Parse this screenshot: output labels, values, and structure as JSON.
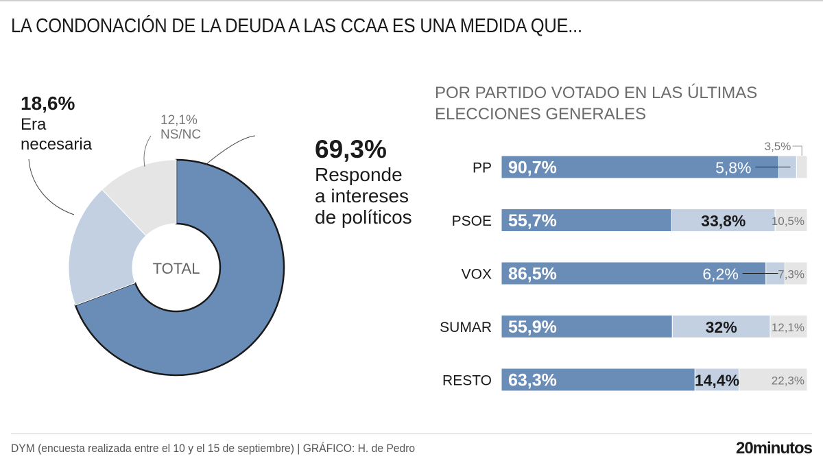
{
  "title": "LA CONDONACIÓN DE LA DEUDA A LAS CCAA ES UNA MEDIDA QUE...",
  "footer": {
    "source": "DYM (encuesta realizada entre el 10 y el 15 de septiembre)  |  GRÁFICO: H. de Pedro",
    "brand": "20minutos"
  },
  "colors": {
    "dark_blue": "#6a8db8",
    "light_blue": "#c2d0e2",
    "grey": "#e5e5e5",
    "outline": "#1a1a1a"
  },
  "chart_data": [
    {
      "type": "pie",
      "title": "TOTAL",
      "center_label": "TOTAL",
      "slices": [
        {
          "label": "Responde a intereses de políticos",
          "value": 69.3,
          "value_label": "69,3%",
          "label_lines": [
            "Responde",
            "a intereses",
            "de políticos"
          ]
        },
        {
          "label": "Era necesaria",
          "value": 18.6,
          "value_label": "18,6%",
          "label_lines": [
            "Era",
            "necesaria"
          ]
        },
        {
          "label": "NS/NC",
          "value": 12.1,
          "value_label": "12,1%",
          "label_lines": [
            "NS/NC"
          ]
        }
      ]
    },
    {
      "type": "bar",
      "orientation": "horizontal",
      "stacked": true,
      "title": "POR PARTIDO VOTADO EN LAS ÚLTIMAS ELECCIONES GENERALES",
      "categories": [
        "PP",
        "PSOE",
        "VOX",
        "SUMAR",
        "RESTO"
      ],
      "series": [
        {
          "name": "Responde a intereses de políticos",
          "values": [
            90.7,
            55.7,
            86.5,
            55.9,
            63.3
          ],
          "labels": [
            "90,7%",
            "55,7%",
            "86,5%",
            "55,9%",
            "63,3%"
          ]
        },
        {
          "name": "Era necesaria",
          "values": [
            5.8,
            33.8,
            6.2,
            32,
            14.4
          ],
          "labels": [
            "5,8%",
            "33,8%",
            "6,2%",
            "32%",
            "14,4%"
          ]
        },
        {
          "name": "NS/NC",
          "values": [
            3.5,
            10.5,
            7.3,
            12.1,
            22.3
          ],
          "labels": [
            "3,5%",
            "10,5%",
            "7,3%",
            "12,1%",
            "22,3%"
          ]
        }
      ],
      "xlim": [
        0,
        100
      ]
    }
  ]
}
